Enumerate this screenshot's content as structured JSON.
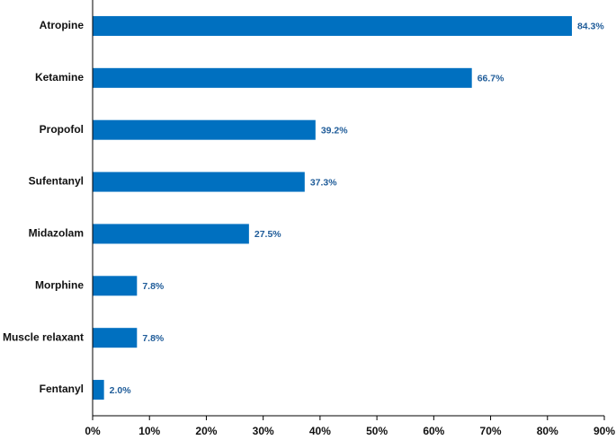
{
  "chart_data": {
    "type": "bar",
    "orientation": "horizontal",
    "categories": [
      "Atropine",
      "Ketamine",
      "Propofol",
      "Sufentanyl",
      "Midazolam",
      "Morphine",
      "Muscle relaxant",
      "Fentanyl"
    ],
    "values": [
      84.3,
      66.7,
      39.2,
      37.3,
      27.5,
      7.8,
      7.8,
      2.0
    ],
    "data_labels": [
      "84.3%",
      "66.7%",
      "39.2%",
      "37.3%",
      "27.5%",
      "7.8%",
      "7.8%",
      "2.0%"
    ],
    "x_ticks": [
      "0%",
      "10%",
      "20%",
      "30%",
      "40%",
      "50%",
      "60%",
      "70%",
      "80%",
      "90%"
    ],
    "xlim": [
      0,
      90
    ],
    "title": "",
    "xlabel": "",
    "ylabel": "",
    "grid": false,
    "colors": {
      "bar": "#0070C0",
      "label": "#1F5C99"
    }
  }
}
